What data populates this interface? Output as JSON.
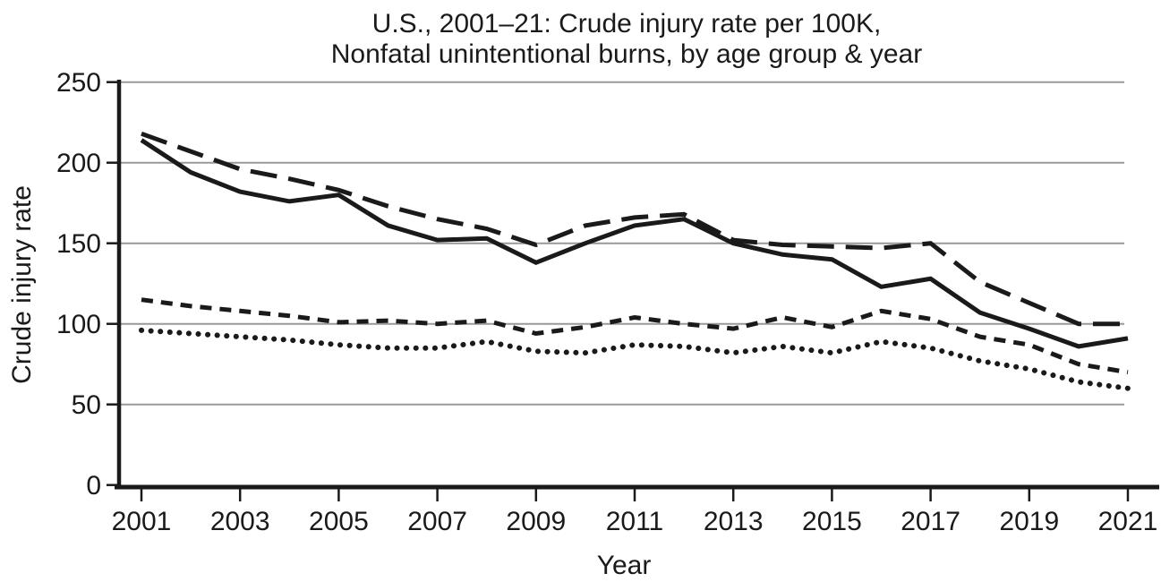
{
  "title": {
    "line1": "U.S., 2001–21: Crude injury rate per 100K,",
    "line2": "Nonfatal unintentional burns, by age group & year"
  },
  "axes": {
    "x_label": "Year",
    "y_label": "Crude injury rate",
    "x_ticks": [
      2001,
      2003,
      2005,
      2007,
      2009,
      2011,
      2013,
      2015,
      2017,
      2019,
      2021
    ],
    "y_ticks": [
      0,
      50,
      100,
      150,
      200,
      250
    ]
  },
  "chart_data": {
    "type": "line",
    "title": "U.S., 2001–21: Crude injury rate per 100K, Nonfatal unintentional burns, by age group & year",
    "xlabel": "Year",
    "ylabel": "Crude injury rate",
    "xlim": [
      2001,
      2021
    ],
    "ylim": [
      0,
      250
    ],
    "grid": true,
    "gridline_values": [
      50,
      100,
      150,
      200,
      250
    ],
    "legend": "none",
    "x": [
      2001,
      2002,
      2003,
      2004,
      2005,
      2006,
      2007,
      2008,
      2009,
      2010,
      2011,
      2012,
      2013,
      2014,
      2015,
      2016,
      2017,
      2018,
      2019,
      2020,
      2021
    ],
    "series": [
      {
        "name": "age-group-long-dash-line",
        "line_style": "long-dash",
        "values": [
          218,
          207,
          196,
          190,
          183,
          173,
          165,
          159,
          149,
          161,
          166,
          168,
          152,
          149,
          148,
          147,
          150,
          126,
          113,
          100,
          100
        ]
      },
      {
        "name": "age-group-solid-line",
        "line_style": "solid",
        "values": [
          214,
          194,
          182,
          176,
          180,
          161,
          152,
          153,
          138,
          150,
          161,
          165,
          150,
          143,
          140,
          123,
          128,
          107,
          97,
          86,
          91
        ]
      },
      {
        "name": "age-group-short-dash-line",
        "line_style": "short-dash",
        "values": [
          115,
          111,
          108,
          105,
          101,
          102,
          100,
          102,
          94,
          98,
          104,
          100,
          97,
          104,
          98,
          108,
          103,
          92,
          87,
          75,
          70
        ]
      },
      {
        "name": "age-group-dotted-line",
        "line_style": "dotted",
        "values": [
          96,
          94,
          92,
          90,
          87,
          85,
          85,
          89,
          83,
          82,
          87,
          86,
          82,
          86,
          82,
          89,
          85,
          77,
          72,
          64,
          60
        ]
      }
    ],
    "colors": {
      "line": "#1a1a1a",
      "grid": "#999999",
      "background": "#ffffff"
    }
  }
}
